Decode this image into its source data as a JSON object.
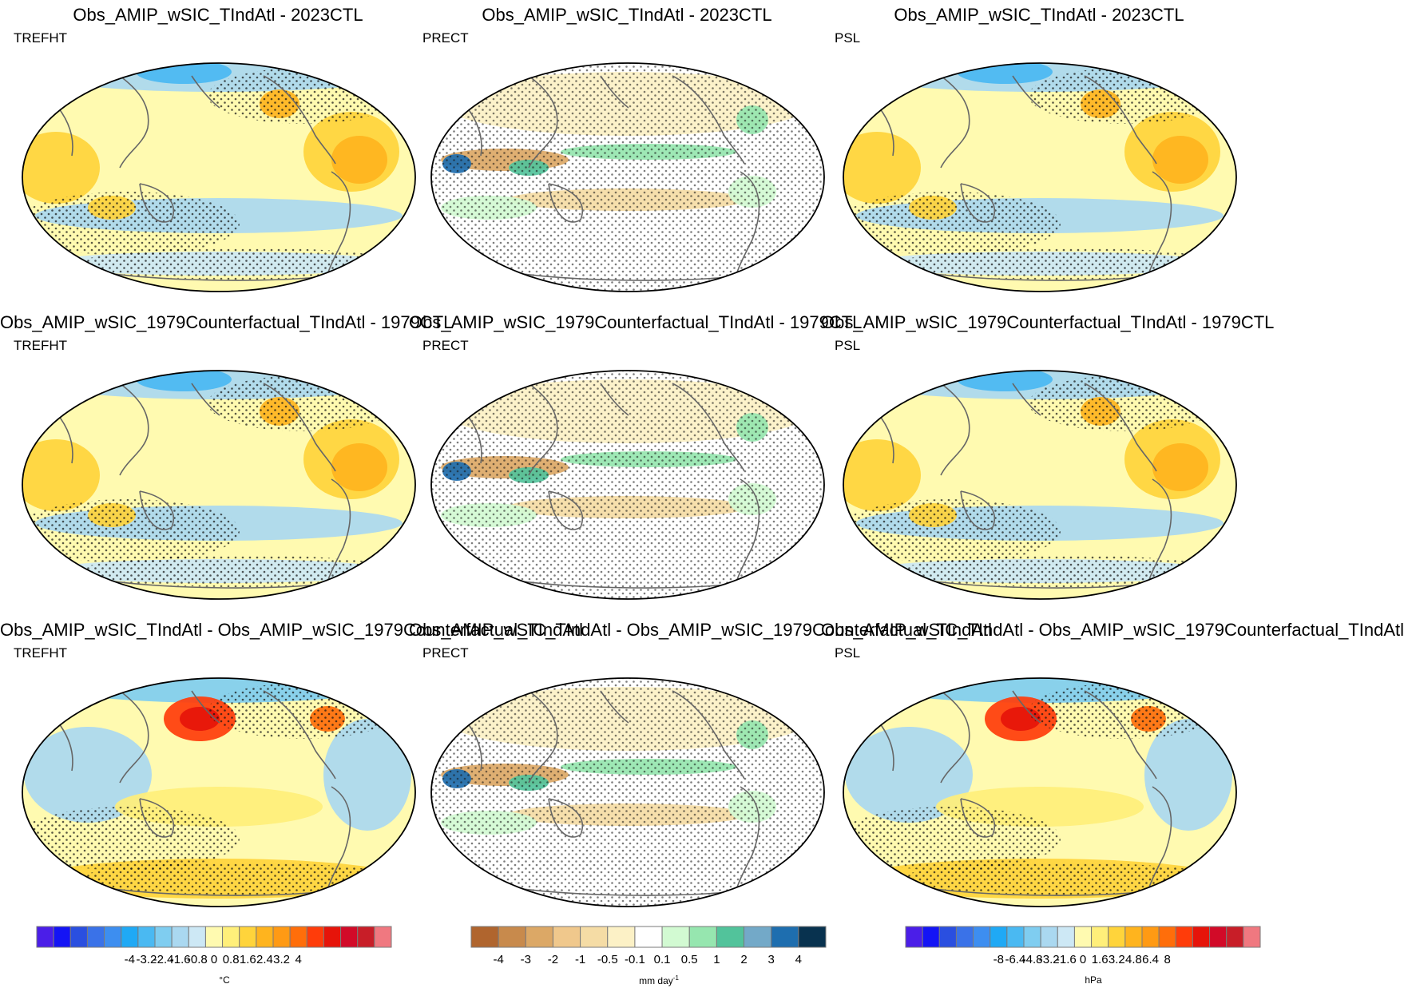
{
  "rows": [
    {
      "title": "Obs_AMIP_wSIC_TIndAtl - 2023CTL",
      "panels": [
        {
          "title": "Obs_AMIP_wSIC_TIndAtl - 2023CTL",
          "variable": "TREFHT"
        },
        {
          "title": "Obs_AMIP_wSIC_TIndAtl - 2023CTL",
          "variable": "PRECT"
        },
        {
          "title": "Obs_AMIP_wSIC_TIndAtl - 2023CTL",
          "variable": "PSL"
        }
      ]
    },
    {
      "title": "Obs_AMIP_wSIC_1979Counterfactual_TIndAtl - 1979CTL",
      "panels": [
        {
          "title": "Obs_AMIP_wSIC_1979Counterfactual_TIndAtl - 1979CTL",
          "variable": "TREFHT"
        },
        {
          "title": "Obs_AMIP_wSIC_1979Counterfactual_TIndAtl - 1979CTL",
          "variable": "PRECT"
        },
        {
          "title": "Obs_AMIP_wSIC_1979Counterfactual_TIndAtl - 1979CTL",
          "variable": "PSL"
        }
      ]
    },
    {
      "title": "Obs_AMIP_wSIC_TIndAtl - Obs_AMIP_wSIC_1979Counterfactual_TIndAtl",
      "panels": [
        {
          "title": "Obs_AMIP_wSIC_TIndAtl - Obs_AMIP_wSIC_1979Counterfactual_TIndAtl",
          "variable": "TREFHT"
        },
        {
          "title": "Obs_AMIP_wSIC_TIndAtl - Obs_AMIP_wSIC_1979Counterfactual_TIndAtl",
          "variable": "PRECT"
        },
        {
          "title": "Obs_AMIP_wSIC_TIndAtl - Obs_AMIP_wSIC_1979Counterfactual_TIndAtl",
          "variable": "PSL"
        }
      ]
    }
  ],
  "colorbars": [
    {
      "variable": "TREFHT",
      "unit": "°C",
      "ticks": [
        "-4",
        "-3.2",
        "-2.4",
        "-1.6",
        "-0.8",
        "0",
        "0.8",
        "1.6",
        "2.4",
        "3.2",
        "4"
      ],
      "colors": [
        "#4b1ee8",
        "#1414f5",
        "#2a4fe0",
        "#3a72e8",
        "#3d8ef0",
        "#1fa9f5",
        "#4ab9f2",
        "#7fcdf0",
        "#aad8f0",
        "#cde8f5",
        "#fffab0",
        "#ffef7a",
        "#ffd43b",
        "#ffb41e",
        "#ff9a14",
        "#ff6e0a",
        "#ff3c0a",
        "#e6140a",
        "#d20a28",
        "#c81e28",
        "#f07880"
      ]
    },
    {
      "variable": "PRECT",
      "unit": "mm day",
      "unit_superscript": "-1",
      "ticks": [
        "-4",
        "-3",
        "-2",
        "-1",
        "-0.5",
        "-0.1",
        "0.1",
        "0.5",
        "1",
        "2",
        "3",
        "4"
      ],
      "colors": [
        "#b0652e",
        "#c88a4c",
        "#dca866",
        "#f0c88c",
        "#f5dca5",
        "#fcf1c6",
        "#ffffff",
        "#d2fad2",
        "#96e6af",
        "#52c39b",
        "#73a9c8",
        "#1e6eaf",
        "#08324f"
      ]
    },
    {
      "variable": "PSL",
      "unit": "hPa",
      "ticks": [
        "-8",
        "-6.4",
        "-4.8",
        "-3.2",
        "-1.6",
        "0",
        "1.6",
        "3.2",
        "4.8",
        "6.4",
        "8"
      ],
      "colors": [
        "#4b1ee8",
        "#1414f5",
        "#2a4fe0",
        "#3a72e8",
        "#3d8ef0",
        "#1fa9f5",
        "#4ab9f2",
        "#7fcdf0",
        "#aad8f0",
        "#cde8f5",
        "#fffab0",
        "#ffef7a",
        "#ffd43b",
        "#ffb41e",
        "#ff9a14",
        "#ff6e0a",
        "#ff3c0a",
        "#e6140a",
        "#d20a28",
        "#c81e28",
        "#f07880"
      ]
    }
  ]
}
